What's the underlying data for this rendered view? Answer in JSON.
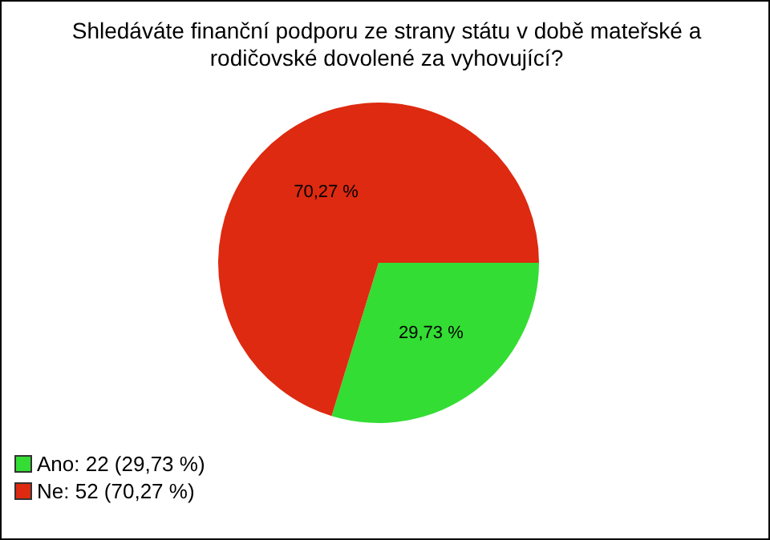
{
  "chart_data": {
    "type": "pie",
    "title": "Shledáváte finanční podporu ze strany státu v době mateřské a rodičovské dovolené za vyhovující?",
    "categories": [
      "Ano: 22 (29,73 %)",
      "Ne: 52 (70,27 %)"
    ],
    "values": [
      29.73,
      70.27
    ],
    "value_labels": [
      "29,73 %",
      "70,27 %"
    ],
    "colors": [
      "#33dd33",
      "#dd2a10"
    ],
    "legend": "bottom left"
  }
}
